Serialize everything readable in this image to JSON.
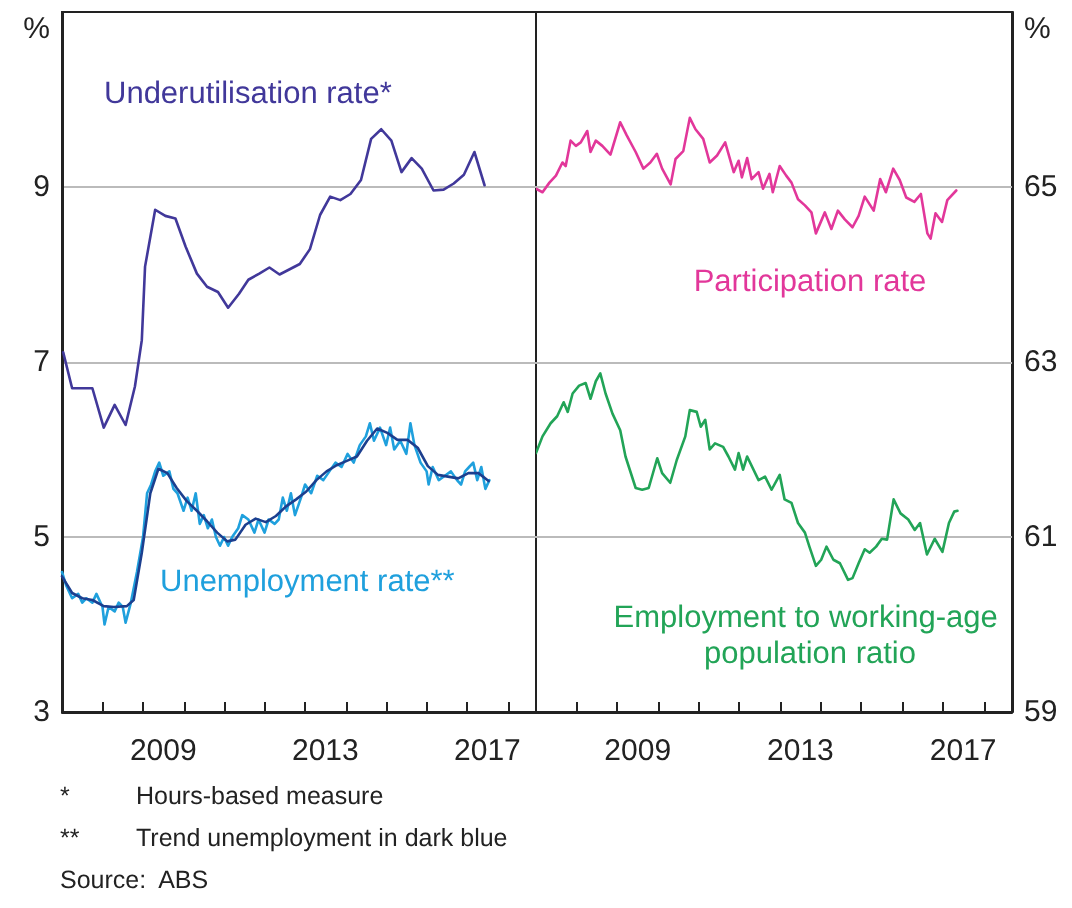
{
  "chart_data": [
    {
      "type": "line",
      "ylabel": "%",
      "xlim": [
        2007,
        2018.7
      ],
      "ylim": [
        3,
        11
      ],
      "yticks": [
        3,
        5,
        7,
        9
      ],
      "xticks": [
        {
          "value": 2008,
          "label": null
        },
        {
          "value": 2009,
          "label": null
        },
        {
          "value": 2009.5,
          "label": "2009"
        },
        {
          "value": 2010,
          "label": null
        },
        {
          "value": 2011,
          "label": null
        },
        {
          "value": 2012,
          "label": null
        },
        {
          "value": 2013,
          "label": null
        },
        {
          "value": 2013.5,
          "label": "2013"
        },
        {
          "value": 2014,
          "label": null
        },
        {
          "value": 2015,
          "label": null
        },
        {
          "value": 2016,
          "label": null
        },
        {
          "value": 2017,
          "label": null
        },
        {
          "value": 2017.5,
          "label": "2017"
        },
        {
          "value": 2018,
          "label": null
        }
      ],
      "grid": "y",
      "marker": "none",
      "series": [
        {
          "name": "Underutilisation rate*",
          "color": "#41389a",
          "x": [
            2007.03,
            2007.25,
            2007.75,
            2008.03,
            2008.3,
            2008.57,
            2008.8,
            2008.97,
            2009.05,
            2009.3,
            2009.55,
            2009.8,
            2010.05,
            2010.33,
            2010.58,
            2010.85,
            2011.1,
            2011.37,
            2011.6,
            2011.87,
            2012.12,
            2012.37,
            2012.62,
            2012.87,
            2013.12,
            2013.37,
            2013.62,
            2013.87,
            2014.12,
            2014.38,
            2014.63,
            2014.88,
            2015.13,
            2015.38,
            2015.63,
            2015.88,
            2016.17,
            2016.42,
            2016.67,
            2016.92,
            2017.18,
            2017.43
          ],
          "values": [
            7.11,
            6.7,
            6.7,
            6.25,
            6.51,
            6.28,
            6.72,
            7.25,
            8.09,
            8.74,
            8.67,
            8.64,
            8.32,
            8.01,
            7.86,
            7.8,
            7.62,
            7.78,
            7.94,
            8.01,
            8.08,
            8.0,
            8.06,
            8.12,
            8.29,
            8.68,
            8.89,
            8.85,
            8.92,
            9.08,
            9.55,
            9.66,
            9.53,
            9.17,
            9.33,
            9.21,
            8.96,
            8.97,
            9.04,
            9.14,
            9.4,
            9.02
          ]
        },
        {
          "name": "Unemployment rate**",
          "color": "#1fa0dd",
          "x": [
            2007.0,
            2007.1,
            2007.25,
            2007.4,
            2007.5,
            2007.6,
            2007.75,
            2007.85,
            2008.0,
            2008.05,
            2008.15,
            2008.3,
            2008.4,
            2008.5,
            2008.57,
            2008.7,
            2008.85,
            2009.0,
            2009.1,
            2009.2,
            2009.3,
            2009.4,
            2009.5,
            2009.65,
            2009.75,
            2009.85,
            2010.0,
            2010.1,
            2010.2,
            2010.3,
            2010.4,
            2010.5,
            2010.6,
            2010.7,
            2010.8,
            2010.9,
            2011.0,
            2011.1,
            2011.2,
            2011.35,
            2011.45,
            2011.6,
            2011.75,
            2011.85,
            2012.0,
            2012.1,
            2012.25,
            2012.35,
            2012.45,
            2012.55,
            2012.65,
            2012.75,
            2012.9,
            2013.0,
            2013.15,
            2013.3,
            2013.45,
            2013.6,
            2013.75,
            2013.9,
            2014.05,
            2014.2,
            2014.35,
            2014.5,
            2014.6,
            2014.7,
            2014.85,
            2015.0,
            2015.1,
            2015.2,
            2015.35,
            2015.5,
            2015.6,
            2015.7,
            2015.85,
            2016.0,
            2016.05,
            2016.15,
            2016.3,
            2016.45,
            2016.6,
            2016.75,
            2016.85,
            2016.95,
            2017.05,
            2017.15,
            2017.25,
            2017.35,
            2017.45,
            2017.55
          ],
          "values": [
            4.6,
            4.45,
            4.3,
            4.35,
            4.25,
            4.3,
            4.25,
            4.35,
            4.2,
            4.0,
            4.2,
            4.15,
            4.25,
            4.2,
            4.02,
            4.25,
            4.6,
            5.0,
            5.5,
            5.6,
            5.75,
            5.85,
            5.7,
            5.75,
            5.55,
            5.5,
            5.3,
            5.45,
            5.3,
            5.5,
            5.15,
            5.25,
            5.1,
            5.2,
            5.0,
            4.9,
            5.0,
            4.9,
            5.0,
            5.1,
            5.25,
            5.2,
            5.05,
            5.2,
            5.05,
            5.2,
            5.15,
            5.2,
            5.45,
            5.3,
            5.5,
            5.25,
            5.45,
            5.6,
            5.5,
            5.7,
            5.65,
            5.75,
            5.85,
            5.8,
            5.95,
            5.85,
            6.05,
            6.15,
            6.3,
            6.1,
            6.25,
            6.05,
            6.25,
            6.0,
            6.1,
            5.95,
            6.3,
            6.05,
            5.85,
            5.75,
            5.6,
            5.8,
            5.65,
            5.7,
            5.75,
            5.65,
            5.6,
            5.75,
            5.8,
            5.85,
            5.65,
            5.8,
            5.55,
            5.65
          ]
        },
        {
          "color": "#1c3f8f",
          "x": [
            2007.0,
            2007.25,
            2007.5,
            2007.75,
            2008.03,
            2008.28,
            2008.6,
            2008.77,
            2008.97,
            2009.18,
            2009.38,
            2009.6,
            2009.83,
            2010.08,
            2010.33,
            2010.58,
            2010.83,
            2011.08,
            2011.28,
            2011.53,
            2011.78,
            2012.03,
            2012.28,
            2012.53,
            2012.78,
            2013.03,
            2013.28,
            2013.53,
            2013.78,
            2014.03,
            2014.28,
            2014.53,
            2014.78,
            2015.03,
            2015.28,
            2015.53,
            2015.78,
            2016.03,
            2016.28,
            2016.53,
            2016.78,
            2017.03,
            2017.28,
            2017.53
          ],
          "values": [
            4.55,
            4.36,
            4.3,
            4.28,
            4.21,
            4.2,
            4.21,
            4.28,
            4.82,
            5.5,
            5.78,
            5.73,
            5.56,
            5.41,
            5.3,
            5.18,
            5.05,
            4.95,
            4.97,
            5.14,
            5.21,
            5.17,
            5.24,
            5.35,
            5.43,
            5.52,
            5.65,
            5.75,
            5.82,
            5.87,
            5.92,
            6.1,
            6.24,
            6.19,
            6.11,
            6.11,
            6.02,
            5.81,
            5.71,
            5.69,
            5.67,
            5.73,
            5.73,
            5.64
          ]
        }
      ],
      "annotations": [
        "* Hours-based measure",
        "** Trend unemployment in dark blue",
        "Source: ABS"
      ]
    },
    {
      "type": "line",
      "y2label": "%",
      "xlim": [
        2007,
        2018.7
      ],
      "y2lim": [
        59,
        67
      ],
      "y2ticks": [
        59,
        61,
        63,
        65
      ],
      "xticks": [
        {
          "value": 2008,
          "label": null
        },
        {
          "value": 2009,
          "label": null
        },
        {
          "value": 2009.5,
          "label": "2009"
        },
        {
          "value": 2010,
          "label": null
        },
        {
          "value": 2011,
          "label": null
        },
        {
          "value": 2012,
          "label": null
        },
        {
          "value": 2013,
          "label": null
        },
        {
          "value": 2013.5,
          "label": "2013"
        },
        {
          "value": 2014,
          "label": null
        },
        {
          "value": 2015,
          "label": null
        },
        {
          "value": 2016,
          "label": null
        },
        {
          "value": 2017,
          "label": null
        },
        {
          "value": 2017.5,
          "label": "2017"
        },
        {
          "value": 2018,
          "label": null
        }
      ],
      "grid": "y",
      "marker": "none",
      "series": [
        {
          "name": "Participation rate",
          "color": "#e2379a",
          "axis": "y2",
          "x": [
            2007.0,
            2007.16,
            2007.33,
            2007.49,
            2007.65,
            2007.73,
            2007.85,
            2007.98,
            2008.1,
            2008.26,
            2008.34,
            2008.47,
            2008.63,
            2008.83,
            2009.07,
            2009.23,
            2009.45,
            2009.64,
            2009.81,
            2009.97,
            2010.1,
            2010.31,
            2010.43,
            2010.62,
            2010.78,
            2010.92,
            2011.11,
            2011.27,
            2011.45,
            2011.65,
            2011.86,
            2011.98,
            2012.06,
            2012.19,
            2012.3,
            2012.47,
            2012.58,
            2012.74,
            2012.82,
            2012.99,
            2013.15,
            2013.28,
            2013.44,
            2013.61,
            2013.77,
            2013.88,
            2014.1,
            2014.26,
            2014.42,
            2014.59,
            2014.78,
            2014.93,
            2015.08,
            2015.3,
            2015.46,
            2015.6,
            2015.78,
            2015.94,
            2016.1,
            2016.3,
            2016.46,
            2016.62,
            2016.7,
            2016.82,
            2016.98,
            2017.11,
            2017.33
          ],
          "values": [
            64.98,
            64.94,
            65.05,
            65.13,
            65.28,
            65.24,
            65.53,
            65.47,
            65.51,
            65.64,
            65.4,
            65.53,
            65.47,
            65.37,
            65.74,
            65.59,
            65.4,
            65.21,
            65.28,
            65.38,
            65.21,
            65.03,
            65.32,
            65.41,
            65.79,
            65.66,
            65.55,
            65.28,
            65.36,
            65.51,
            65.17,
            65.3,
            65.11,
            65.33,
            65.09,
            65.17,
            64.98,
            65.15,
            64.94,
            65.24,
            65.13,
            65.05,
            64.86,
            64.79,
            64.71,
            64.47,
            64.71,
            64.52,
            64.73,
            64.63,
            64.54,
            64.67,
            64.89,
            64.73,
            65.09,
            64.94,
            65.21,
            65.08,
            64.88,
            64.83,
            64.92,
            64.47,
            64.41,
            64.7,
            64.6,
            64.85,
            64.96
          ]
        },
        {
          "name": "Employment to working-age population ratio",
          "color": "#22a457",
          "axis": "y2",
          "x": [
            2007.0,
            2007.16,
            2007.36,
            2007.52,
            2007.68,
            2007.78,
            2007.9,
            2008.06,
            2008.22,
            2008.34,
            2008.47,
            2008.58,
            2008.71,
            2008.88,
            2009.07,
            2009.2,
            2009.45,
            2009.61,
            2009.77,
            2009.98,
            2010.1,
            2010.3,
            2010.46,
            2010.67,
            2010.78,
            2010.95,
            2011.05,
            2011.16,
            2011.27,
            2011.4,
            2011.6,
            2011.73,
            2011.89,
            2011.98,
            2012.09,
            2012.19,
            2012.47,
            2012.63,
            2012.79,
            2012.99,
            2013.11,
            2013.28,
            2013.44,
            2013.61,
            2013.72,
            2013.88,
            2014.01,
            2014.14,
            2014.31,
            2014.47,
            2014.67,
            2014.78,
            2014.93,
            2015.08,
            2015.2,
            2015.36,
            2015.5,
            2015.63,
            2015.79,
            2015.96,
            2016.15,
            2016.31,
            2016.44,
            2016.61,
            2016.8,
            2016.99,
            2017.15,
            2017.28,
            2017.36
          ],
          "values": [
            61.96,
            62.15,
            62.3,
            62.38,
            62.54,
            62.43,
            62.64,
            62.73,
            62.76,
            62.58,
            62.78,
            62.87,
            62.64,
            62.41,
            62.22,
            61.92,
            61.56,
            61.54,
            61.56,
            61.9,
            61.73,
            61.62,
            61.88,
            62.15,
            62.45,
            62.43,
            62.26,
            62.34,
            62.0,
            62.07,
            62.03,
            61.92,
            61.77,
            61.96,
            61.77,
            61.92,
            61.65,
            61.69,
            61.54,
            61.71,
            61.43,
            61.39,
            61.16,
            61.05,
            60.89,
            60.67,
            60.74,
            60.89,
            60.74,
            60.7,
            60.51,
            60.53,
            60.7,
            60.86,
            60.82,
            60.89,
            60.98,
            60.97,
            61.43,
            61.27,
            61.2,
            61.08,
            61.16,
            60.8,
            60.98,
            60.83,
            61.16,
            61.29,
            61.3
          ]
        }
      ]
    }
  ]
}
